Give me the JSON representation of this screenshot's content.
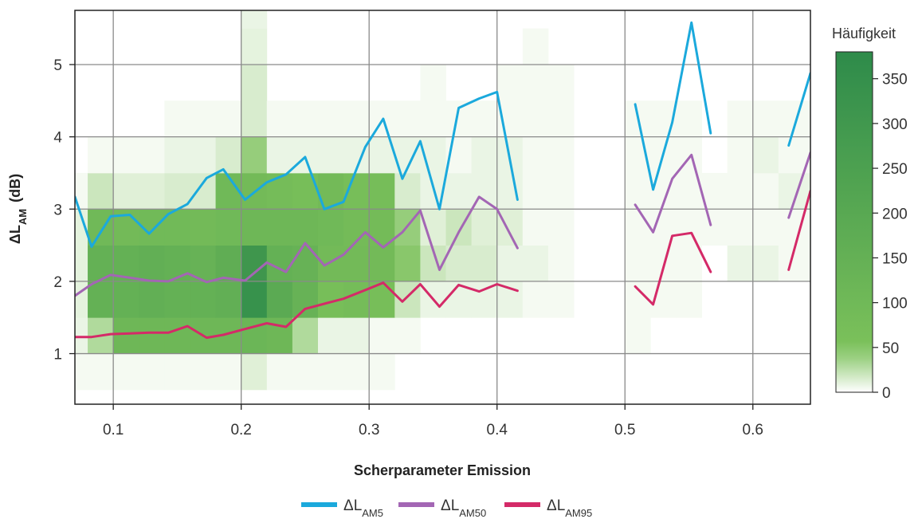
{
  "chart_data": {
    "type": "heatmap",
    "xlabel": "Scherparameter Emission",
    "ylabel": {
      "main": "ΔL",
      "sub": "AM",
      "unit": "(dB)"
    },
    "xlim": [
      0.07,
      0.645
    ],
    "ylim": [
      0.3,
      5.75
    ],
    "x_ticks": [
      0.1,
      0.2,
      0.3,
      0.4,
      0.5,
      0.6
    ],
    "x_tick_labels": [
      "0.1",
      "0.2",
      "0.3",
      "0.4",
      "0.5",
      "0.6"
    ],
    "y_ticks": [
      1,
      2,
      3,
      4,
      5
    ],
    "y_tick_labels": [
      "1",
      "2",
      "3",
      "4",
      "5"
    ],
    "grid": true,
    "heatmap": {
      "x_start": 0.06,
      "x_bin": 0.02,
      "y_bin": 0.5,
      "row_y_starts": [
        0.5,
        1.0,
        1.5,
        2.0,
        2.5,
        3.0,
        3.5,
        4.0,
        4.5,
        5.0,
        5.5
      ],
      "counts": [
        [
          4,
          4,
          4,
          4,
          4,
          4,
          4,
          12,
          4,
          4,
          4,
          4,
          4,
          0,
          0,
          0,
          0,
          0,
          0,
          0,
          0,
          0,
          0,
          0,
          0,
          0,
          0,
          0,
          0,
          0
        ],
        [
          8,
          30,
          110,
          110,
          110,
          110,
          110,
          120,
          110,
          30,
          8,
          8,
          4,
          4,
          0,
          0,
          0,
          0,
          0,
          0,
          0,
          0,
          4,
          0,
          0,
          0,
          0,
          0,
          0,
          0
        ],
        [
          10,
          150,
          150,
          160,
          150,
          150,
          160,
          340,
          190,
          140,
          70,
          80,
          70,
          20,
          8,
          8,
          8,
          8,
          4,
          4,
          0,
          0,
          4,
          4,
          4,
          0,
          0,
          0,
          0,
          0
        ],
        [
          10,
          150,
          150,
          160,
          150,
          140,
          170,
          310,
          150,
          140,
          90,
          90,
          90,
          45,
          20,
          15,
          15,
          8,
          8,
          4,
          0,
          0,
          4,
          4,
          4,
          0,
          8,
          8,
          4,
          4
        ],
        [
          10,
          100,
          90,
          95,
          95,
          90,
          100,
          110,
          110,
          110,
          100,
          85,
          85,
          40,
          12,
          20,
          12,
          12,
          4,
          4,
          0,
          0,
          4,
          4,
          4,
          4,
          4,
          4,
          4,
          4
        ],
        [
          4,
          20,
          12,
          12,
          15,
          15,
          100,
          90,
          80,
          70,
          90,
          70,
          75,
          15,
          8,
          8,
          8,
          8,
          4,
          4,
          0,
          0,
          4,
          4,
          4,
          4,
          4,
          4,
          8,
          8
        ],
        [
          0,
          4,
          4,
          4,
          8,
          8,
          15,
          40,
          8,
          8,
          8,
          8,
          8,
          8,
          8,
          4,
          8,
          8,
          4,
          4,
          0,
          0,
          4,
          4,
          4,
          0,
          4,
          8,
          4,
          4
        ],
        [
          0,
          0,
          0,
          0,
          4,
          4,
          4,
          15,
          4,
          4,
          4,
          4,
          4,
          4,
          4,
          4,
          4,
          4,
          4,
          4,
          0,
          0,
          4,
          4,
          4,
          0,
          4,
          4,
          4,
          4
        ],
        [
          0,
          0,
          0,
          0,
          0,
          0,
          0,
          15,
          0,
          0,
          0,
          0,
          0,
          0,
          4,
          0,
          0,
          4,
          4,
          4,
          0,
          0,
          0,
          0,
          0,
          0,
          0,
          0,
          0,
          0
        ],
        [
          0,
          0,
          0,
          0,
          0,
          0,
          0,
          10,
          0,
          0,
          0,
          0,
          0,
          0,
          0,
          0,
          0,
          0,
          4,
          0,
          0,
          0,
          0,
          0,
          0,
          0,
          0,
          0,
          0,
          0
        ],
        [
          0,
          0,
          0,
          0,
          0,
          0,
          0,
          8,
          0,
          0,
          0,
          0,
          0,
          0,
          0,
          0,
          0,
          0,
          0,
          0,
          0,
          0,
          0,
          0,
          0,
          0,
          0,
          0,
          0,
          0
        ]
      ]
    },
    "colorbar": {
      "title": "Häufigkeit",
      "min": 0,
      "max": 380,
      "ticks": [
        0,
        50,
        100,
        150,
        200,
        250,
        300,
        350
      ],
      "tick_labels": [
        "0",
        "50",
        "100",
        "150",
        "200",
        "250",
        "300",
        "350"
      ],
      "color_low": "#ffffff",
      "color_mid": "#7cc15a",
      "color_high": "#2e8b4a"
    },
    "series": [
      {
        "name": {
          "main": "ΔL",
          "sub": "AM5"
        },
        "color": "#1ba9dc",
        "segments": [
          [
            [
              0.07,
              3.17
            ],
            [
              0.083,
              2.48
            ],
            [
              0.098,
              2.9
            ],
            [
              0.113,
              2.92
            ],
            [
              0.128,
              2.66
            ],
            [
              0.143,
              2.93
            ],
            [
              0.158,
              3.07
            ],
            [
              0.173,
              3.43
            ],
            [
              0.186,
              3.55
            ],
            [
              0.203,
              3.13
            ],
            [
              0.22,
              3.37
            ],
            [
              0.235,
              3.48
            ],
            [
              0.25,
              3.72
            ],
            [
              0.265,
              3.0
            ],
            [
              0.28,
              3.1
            ],
            [
              0.297,
              3.86
            ],
            [
              0.311,
              4.25
            ],
            [
              0.326,
              3.42
            ],
            [
              0.34,
              3.94
            ],
            [
              0.355,
              3.0
            ],
            [
              0.37,
              4.4
            ],
            [
              0.386,
              4.53
            ],
            [
              0.4,
              4.62
            ],
            [
              0.416,
              3.13
            ]
          ],
          [
            [
              0.508,
              4.45
            ],
            [
              0.522,
              3.27
            ],
            [
              0.537,
              4.2
            ],
            [
              0.552,
              5.58
            ],
            [
              0.567,
              4.05
            ]
          ],
          [
            [
              0.628,
              3.88
            ],
            [
              0.645,
              4.88
            ]
          ]
        ]
      },
      {
        "name": {
          "main": "ΔL",
          "sub": "AM50"
        },
        "color": "#a366b4",
        "segments": [
          [
            [
              0.07,
              1.8
            ],
            [
              0.083,
              1.96
            ],
            [
              0.098,
              2.09
            ],
            [
              0.113,
              2.05
            ],
            [
              0.128,
              2.01
            ],
            [
              0.143,
              2.0
            ],
            [
              0.158,
              2.11
            ],
            [
              0.173,
              1.99
            ],
            [
              0.186,
              2.05
            ],
            [
              0.203,
              2.01
            ],
            [
              0.22,
              2.26
            ],
            [
              0.235,
              2.13
            ],
            [
              0.25,
              2.53
            ],
            [
              0.265,
              2.22
            ],
            [
              0.28,
              2.37
            ],
            [
              0.297,
              2.68
            ],
            [
              0.311,
              2.47
            ],
            [
              0.326,
              2.68
            ],
            [
              0.34,
              2.98
            ],
            [
              0.355,
              2.16
            ],
            [
              0.37,
              2.68
            ],
            [
              0.386,
              3.17
            ],
            [
              0.4,
              3.0
            ],
            [
              0.416,
              2.46
            ]
          ],
          [
            [
              0.508,
              3.06
            ],
            [
              0.522,
              2.68
            ],
            [
              0.537,
              3.42
            ],
            [
              0.552,
              3.75
            ],
            [
              0.567,
              2.78
            ]
          ],
          [
            [
              0.628,
              2.88
            ],
            [
              0.645,
              3.78
            ]
          ]
        ]
      },
      {
        "name": {
          "main": "ΔL",
          "sub": "AM95"
        },
        "color": "#d42a68",
        "segments": [
          [
            [
              0.07,
              1.23
            ],
            [
              0.083,
              1.23
            ],
            [
              0.098,
              1.27
            ],
            [
              0.113,
              1.28
            ],
            [
              0.128,
              1.29
            ],
            [
              0.143,
              1.29
            ],
            [
              0.158,
              1.38
            ],
            [
              0.173,
              1.22
            ],
            [
              0.186,
              1.26
            ],
            [
              0.203,
              1.34
            ],
            [
              0.22,
              1.42
            ],
            [
              0.235,
              1.37
            ],
            [
              0.25,
              1.62
            ],
            [
              0.265,
              1.69
            ],
            [
              0.28,
              1.76
            ],
            [
              0.297,
              1.88
            ],
            [
              0.311,
              1.98
            ],
            [
              0.326,
              1.72
            ],
            [
              0.34,
              1.96
            ],
            [
              0.355,
              1.65
            ],
            [
              0.37,
              1.95
            ],
            [
              0.386,
              1.86
            ],
            [
              0.4,
              1.96
            ],
            [
              0.416,
              1.87
            ]
          ],
          [
            [
              0.508,
              1.93
            ],
            [
              0.522,
              1.68
            ],
            [
              0.537,
              2.63
            ],
            [
              0.552,
              2.67
            ],
            [
              0.567,
              2.13
            ]
          ],
          [
            [
              0.628,
              2.16
            ],
            [
              0.645,
              3.25
            ]
          ]
        ]
      }
    ]
  }
}
